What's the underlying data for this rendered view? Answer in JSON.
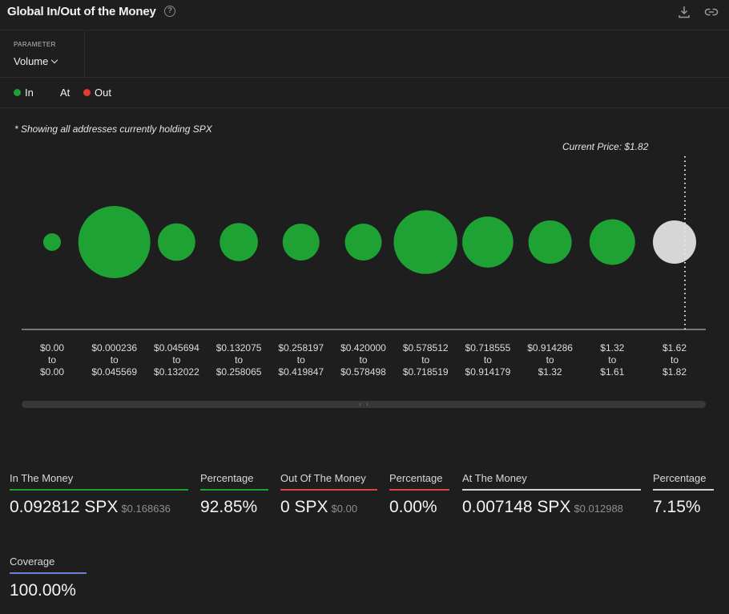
{
  "header": {
    "title": "Global In/Out of the Money",
    "help_glyph": "?"
  },
  "parameter": {
    "label": "PARAMETER",
    "value": "Volume"
  },
  "legend": [
    {
      "label": "In",
      "color": "#1fa234"
    },
    {
      "label": "At",
      "color": ""
    },
    {
      "label": "Out",
      "color": "#e23b2e"
    }
  ],
  "note": "* Showing all addresses currently holding SPX",
  "current_price_label": "Current Price: $1.82",
  "chart_data": {
    "type": "bubble",
    "current_price": 1.82,
    "colors": {
      "in": "#1fa234",
      "at": "#d6d6d6"
    },
    "buckets": [
      {
        "from": "$0.00",
        "to": "$0.00",
        "status": "in",
        "size": 0.06
      },
      {
        "from": "$0.000236",
        "to": "$0.045569",
        "status": "in",
        "size": 1.0
      },
      {
        "from": "$0.045694",
        "to": "$0.132022",
        "status": "in",
        "size": 0.27
      },
      {
        "from": "$0.132075",
        "to": "$0.258065",
        "status": "in",
        "size": 0.28
      },
      {
        "from": "$0.258197",
        "to": "$0.419847",
        "status": "in",
        "size": 0.26
      },
      {
        "from": "$0.420000",
        "to": "$0.578498",
        "status": "in",
        "size": 0.26
      },
      {
        "from": "$0.578512",
        "to": "$0.718519",
        "status": "in",
        "size": 0.78
      },
      {
        "from": "$0.718555",
        "to": "$0.914179",
        "status": "in",
        "size": 0.5
      },
      {
        "from": "$0.914286",
        "to": "$1.32",
        "status": "in",
        "size": 0.36
      },
      {
        "from": "$1.32",
        "to": "$1.61",
        "status": "in",
        "size": 0.4
      },
      {
        "from": "$1.62",
        "to": "$1.82",
        "status": "at",
        "size": 0.36
      }
    ],
    "range_connector": "to"
  },
  "stats": {
    "in_money": {
      "label": "In The Money",
      "value": "0.092812 SPX",
      "sub": "$0.168636",
      "color": "#1fa234"
    },
    "in_pct": {
      "label": "Percentage",
      "value": "92.85%",
      "color": "#1fa234"
    },
    "out_money": {
      "label": "Out Of The Money",
      "value": "0 SPX",
      "sub": "$0.00",
      "color": "#d9463b"
    },
    "out_pct": {
      "label": "Percentage",
      "value": "0.00%",
      "color": "#d9463b"
    },
    "at_money": {
      "label": "At The Money",
      "value": "0.007148 SPX",
      "sub": "$0.012988",
      "color": "#d6d6d6"
    },
    "at_pct": {
      "label": "Percentage",
      "value": "7.15%",
      "color": "#d6d6d6"
    },
    "coverage": {
      "label": "Coverage",
      "value": "100.00%",
      "color": "#6f7fd6"
    }
  }
}
